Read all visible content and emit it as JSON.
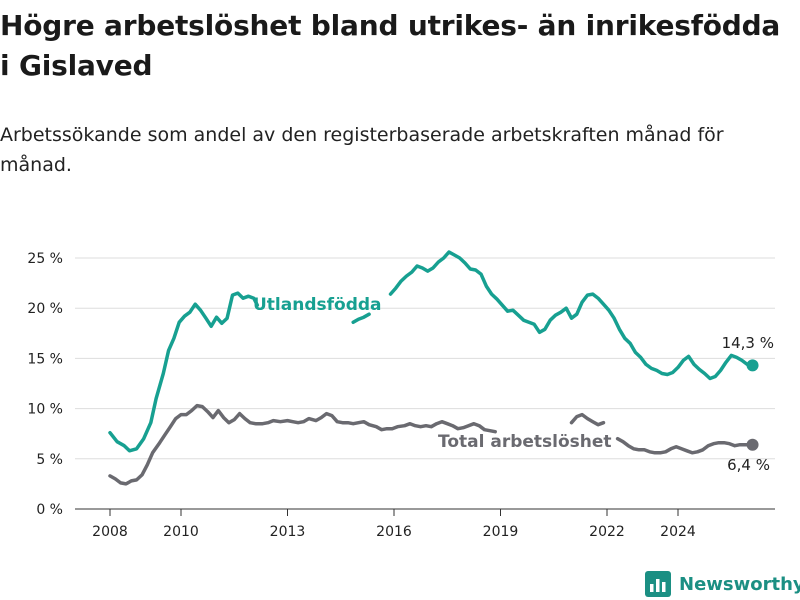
{
  "title": "Högre arbetslöshet bland utrikes- än inrikesfödda i Gislaved",
  "subtitle": "Arbetssökande som andel av den registerbaserade arbetskraften månad för månad.",
  "brand": {
    "name": "Newsworthy",
    "icon": "bar-chart-logo-icon"
  },
  "colors": {
    "foreign": "#17a091",
    "total": "#6a6a70",
    "text": "#222222",
    "grid": "#dddddd"
  },
  "chart_data": {
    "type": "line",
    "title": "Högre arbetslöshet bland utrikes- än inrikesfödda i Gislaved",
    "xlabel": "",
    "ylabel": "",
    "xlim": [
      2007.6,
      2025.3
    ],
    "ylim": [
      0,
      25
    ],
    "grid": "horizontal",
    "x_ticks": [
      2008,
      2010,
      2013,
      2016,
      2019,
      2022,
      2024
    ],
    "y_ticks": [
      {
        "value": 0,
        "label": "0 %"
      },
      {
        "value": 5,
        "label": "5 %"
      },
      {
        "value": 10,
        "label": "10 %"
      },
      {
        "value": 15,
        "label": "15 %"
      },
      {
        "value": 20,
        "label": "20 %"
      },
      {
        "value": 25,
        "label": "25 %"
      }
    ],
    "series": [
      {
        "name": "Utlandsfödda",
        "color": "#17a091",
        "label_text": "Utlandsfödda",
        "end_label": "14,3 %",
        "points": [
          [
            2008.0,
            7.6
          ],
          [
            2008.2,
            6.7
          ],
          [
            2008.4,
            6.3
          ],
          [
            2008.55,
            5.8
          ],
          [
            2008.75,
            6.0
          ],
          [
            2008.95,
            7.0
          ],
          [
            2009.15,
            8.6
          ],
          [
            2009.3,
            11.0
          ],
          [
            2009.5,
            13.5
          ],
          [
            2009.65,
            15.8
          ],
          [
            2009.8,
            17.0
          ],
          [
            2009.95,
            18.6
          ],
          [
            2010.1,
            19.2
          ],
          [
            2010.25,
            19.6
          ],
          [
            2010.4,
            20.4
          ],
          [
            2010.55,
            19.8
          ],
          [
            2010.7,
            19.0
          ],
          [
            2010.85,
            18.2
          ],
          [
            2011.0,
            19.1
          ],
          [
            2011.15,
            18.5
          ],
          [
            2011.3,
            19.0
          ],
          [
            2011.45,
            21.3
          ],
          [
            2011.6,
            21.5
          ],
          [
            2011.75,
            21.0
          ],
          [
            2011.9,
            21.2
          ],
          [
            2012.05,
            21.0
          ],
          [
            2012.15,
            20.3
          ],
          null,
          [
            2014.85,
            18.6
          ],
          [
            2015.0,
            18.9
          ],
          [
            2015.15,
            19.1
          ],
          [
            2015.3,
            19.4
          ],
          null,
          [
            2015.9,
            21.4
          ],
          [
            2016.05,
            22.0
          ],
          [
            2016.2,
            22.7
          ],
          [
            2016.35,
            23.2
          ],
          [
            2016.5,
            23.6
          ],
          [
            2016.65,
            24.2
          ],
          [
            2016.8,
            24.0
          ],
          [
            2016.95,
            23.7
          ],
          [
            2017.1,
            24.0
          ],
          [
            2017.25,
            24.6
          ],
          [
            2017.4,
            25.0
          ],
          [
            2017.55,
            25.6
          ],
          [
            2017.7,
            25.3
          ],
          [
            2017.85,
            25.0
          ],
          [
            2018.0,
            24.5
          ],
          [
            2018.15,
            23.9
          ],
          [
            2018.3,
            23.8
          ],
          [
            2018.45,
            23.4
          ],
          [
            2018.6,
            22.2
          ],
          [
            2018.75,
            21.4
          ],
          [
            2018.9,
            20.9
          ],
          [
            2019.05,
            20.3
          ],
          [
            2019.2,
            19.7
          ],
          [
            2019.35,
            19.8
          ],
          [
            2019.5,
            19.3
          ],
          [
            2019.65,
            18.8
          ],
          [
            2019.8,
            18.6
          ],
          [
            2019.95,
            18.4
          ],
          [
            2020.1,
            17.6
          ],
          [
            2020.25,
            17.9
          ],
          [
            2020.4,
            18.8
          ],
          [
            2020.55,
            19.3
          ],
          [
            2020.7,
            19.6
          ],
          [
            2020.85,
            20.0
          ],
          [
            2021.0,
            19.0
          ],
          [
            2021.15,
            19.4
          ],
          [
            2021.3,
            20.6
          ],
          [
            2021.45,
            21.3
          ],
          [
            2021.6,
            21.4
          ],
          [
            2021.75,
            21.0
          ],
          [
            2021.9,
            20.4
          ],
          [
            2022.05,
            19.8
          ],
          [
            2022.2,
            19.0
          ],
          [
            2022.35,
            17.9
          ],
          [
            2022.5,
            17.0
          ],
          [
            2022.65,
            16.5
          ],
          [
            2022.8,
            15.6
          ],
          [
            2022.95,
            15.1
          ],
          [
            2023.1,
            14.4
          ],
          [
            2023.25,
            14.0
          ],
          [
            2023.4,
            13.8
          ],
          [
            2023.55,
            13.5
          ],
          [
            2023.7,
            13.4
          ],
          [
            2023.85,
            13.6
          ],
          [
            2024.0,
            14.1
          ],
          [
            2024.15,
            14.8
          ],
          [
            2024.3,
            15.2
          ],
          [
            2024.45,
            14.4
          ],
          [
            2024.6,
            13.9
          ],
          [
            2024.75,
            13.5
          ],
          [
            2024.9,
            13.0
          ],
          [
            2025.05,
            13.2
          ],
          [
            2025.2,
            13.8
          ],
          [
            2025.35,
            14.6
          ],
          [
            2025.5,
            15.3
          ],
          [
            2025.65,
            15.1
          ],
          [
            2025.8,
            14.8
          ],
          [
            2025.95,
            14.4
          ],
          [
            2026.1,
            14.3
          ]
        ]
      },
      {
        "name": "Total arbetslöshet",
        "color": "#6a6a70",
        "label_text": "Total arbetslöshet",
        "end_label": "6,4 %",
        "points": [
          [
            2008.0,
            3.3
          ],
          [
            2008.15,
            3.0
          ],
          [
            2008.3,
            2.6
          ],
          [
            2008.45,
            2.5
          ],
          [
            2008.6,
            2.8
          ],
          [
            2008.75,
            2.9
          ],
          [
            2008.9,
            3.4
          ],
          [
            2009.05,
            4.4
          ],
          [
            2009.2,
            5.6
          ],
          [
            2009.4,
            6.6
          ],
          [
            2009.55,
            7.4
          ],
          [
            2009.7,
            8.2
          ],
          [
            2009.85,
            9.0
          ],
          [
            2010.0,
            9.4
          ],
          [
            2010.15,
            9.4
          ],
          [
            2010.3,
            9.8
          ],
          [
            2010.45,
            10.3
          ],
          [
            2010.6,
            10.2
          ],
          [
            2010.75,
            9.7
          ],
          [
            2010.9,
            9.1
          ],
          [
            2011.05,
            9.8
          ],
          [
            2011.2,
            9.1
          ],
          [
            2011.35,
            8.6
          ],
          [
            2011.5,
            8.9
          ],
          [
            2011.65,
            9.5
          ],
          [
            2011.8,
            9.0
          ],
          [
            2011.95,
            8.6
          ],
          [
            2012.1,
            8.5
          ],
          [
            2012.3,
            8.5
          ],
          [
            2012.45,
            8.6
          ],
          [
            2012.6,
            8.8
          ],
          [
            2012.8,
            8.7
          ],
          [
            2013.0,
            8.8
          ],
          [
            2013.15,
            8.7
          ],
          [
            2013.3,
            8.6
          ],
          [
            2013.45,
            8.7
          ],
          [
            2013.6,
            9.0
          ],
          [
            2013.8,
            8.8
          ],
          [
            2013.95,
            9.1
          ],
          [
            2014.1,
            9.5
          ],
          [
            2014.25,
            9.3
          ],
          [
            2014.4,
            8.7
          ],
          [
            2014.55,
            8.6
          ],
          [
            2014.7,
            8.6
          ],
          [
            2014.85,
            8.5
          ],
          [
            2015.0,
            8.6
          ],
          [
            2015.15,
            8.7
          ],
          [
            2015.3,
            8.4
          ],
          [
            2015.5,
            8.2
          ],
          [
            2015.65,
            7.9
          ],
          [
            2015.8,
            8.0
          ],
          [
            2015.95,
            8.0
          ],
          [
            2016.1,
            8.2
          ],
          [
            2016.3,
            8.3
          ],
          [
            2016.45,
            8.5
          ],
          [
            2016.6,
            8.3
          ],
          [
            2016.75,
            8.2
          ],
          [
            2016.9,
            8.3
          ],
          [
            2017.05,
            8.2
          ],
          [
            2017.2,
            8.5
          ],
          [
            2017.35,
            8.7
          ],
          [
            2017.5,
            8.5
          ],
          [
            2017.65,
            8.3
          ],
          [
            2017.8,
            8.0
          ],
          [
            2017.95,
            8.1
          ],
          [
            2018.1,
            8.3
          ],
          [
            2018.25,
            8.5
          ],
          [
            2018.4,
            8.3
          ],
          [
            2018.55,
            7.9
          ],
          [
            2018.7,
            7.8
          ],
          [
            2018.85,
            7.7
          ],
          null,
          [
            2021.0,
            8.6
          ],
          [
            2021.15,
            9.2
          ],
          [
            2021.3,
            9.4
          ],
          [
            2021.45,
            9.0
          ],
          [
            2021.6,
            8.7
          ],
          [
            2021.75,
            8.4
          ],
          [
            2021.9,
            8.6
          ],
          null,
          [
            2022.3,
            7.0
          ],
          [
            2022.45,
            6.7
          ],
          [
            2022.6,
            6.3
          ],
          [
            2022.75,
            6.0
          ],
          [
            2022.9,
            5.9
          ],
          [
            2023.05,
            5.9
          ],
          [
            2023.2,
            5.7
          ],
          [
            2023.35,
            5.6
          ],
          [
            2023.5,
            5.6
          ],
          [
            2023.65,
            5.7
          ],
          [
            2023.8,
            6.0
          ],
          [
            2023.95,
            6.2
          ],
          [
            2024.1,
            6.0
          ],
          [
            2024.25,
            5.8
          ],
          [
            2024.4,
            5.6
          ],
          [
            2024.55,
            5.7
          ],
          [
            2024.7,
            5.9
          ],
          [
            2024.85,
            6.3
          ],
          [
            2025.0,
            6.5
          ],
          [
            2025.15,
            6.6
          ],
          [
            2025.3,
            6.6
          ],
          [
            2025.45,
            6.5
          ],
          [
            2025.6,
            6.3
          ],
          [
            2025.75,
            6.4
          ],
          [
            2025.9,
            6.4
          ],
          [
            2026.1,
            6.4
          ]
        ]
      }
    ]
  }
}
